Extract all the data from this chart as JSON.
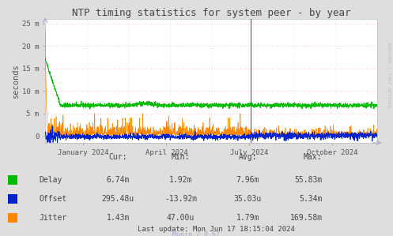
{
  "title": "NTP timing statistics for system peer - by year",
  "ylabel": "seconds",
  "background_color": "#dedede",
  "plot_bg_color": "#ffffff",
  "grid_color": "#ffaaaa",
  "ylim": [
    -1500,
    26000
  ],
  "yticks": [
    0,
    5000,
    10000,
    15000,
    20000,
    25000
  ],
  "ytick_labels": [
    "0",
    "5 m",
    "10 m",
    "15 m",
    "20 m",
    "25 m"
  ],
  "delay_color": "#00bb00",
  "offset_color": "#0022cc",
  "jitter_color": "#ff8800",
  "xtick_positions": [
    0.115,
    0.365,
    0.615,
    0.865
  ],
  "xtick_labels": [
    "January 2024",
    "April 2024",
    "July 2024",
    "October 2024"
  ],
  "vline_x": 0.618,
  "stats_headers": [
    "Cur:",
    "Min:",
    "Avg:",
    "Max:"
  ],
  "stats_delay": [
    "6.74m",
    "1.92m",
    "7.96m",
    "55.83m"
  ],
  "stats_offset": [
    "295.48u",
    "-13.92m",
    "35.03u",
    "5.34m"
  ],
  "stats_jitter": [
    "1.43m",
    "47.00u",
    "1.79m",
    "169.58m"
  ],
  "last_update": "Last update: Mon Jun 17 18:15:04 2024",
  "munin_version": "Munin 2.0.67",
  "rrdtool_label": "RRDTOOL / TOBI OETIKER"
}
